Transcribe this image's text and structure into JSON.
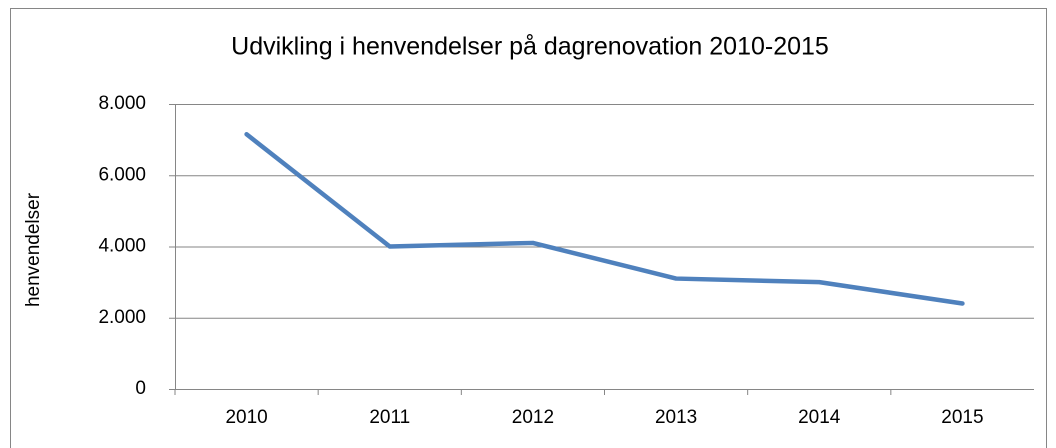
{
  "chart_data": {
    "type": "line",
    "title": "Udvikling i henvendelser på dagrenovation 2010-2015",
    "y_label": "henvendelser",
    "categories": [
      "2010",
      "2011",
      "2012",
      "2013",
      "2014",
      "2015"
    ],
    "series": [
      {
        "name": "henvendelser",
        "color": "#4f81bd",
        "values": [
          7150,
          4000,
          4100,
          3100,
          3000,
          2400
        ]
      }
    ],
    "ylim": [
      0,
      8000
    ],
    "yticks": [
      0,
      {
        "value": 2000,
        "label": "2.000"
      },
      {
        "value": 4000,
        "label": "4.000"
      },
      {
        "value": 6000,
        "label": "6.000"
      },
      {
        "value": 8000,
        "label": "8.000"
      }
    ],
    "grid": true,
    "legend": "none"
  }
}
